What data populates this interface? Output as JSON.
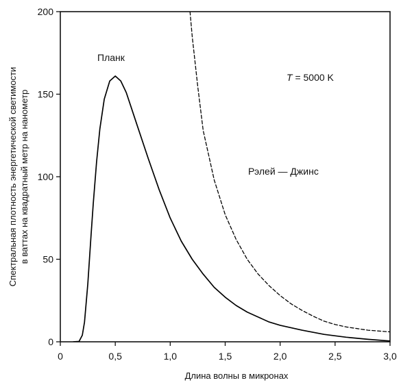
{
  "chart_data": {
    "type": "line",
    "xlabel": "Длина волны в микронах",
    "ylabel_line1": "Спектральная плотность энергетической светимости",
    "ylabel_line2": "в ваттах на квадратный метр на нанометр",
    "xlim": [
      0,
      3.0
    ],
    "ylim": [
      0,
      200
    ],
    "grid": false,
    "legend": "none",
    "x_ticks": [
      0,
      0.5,
      1.0,
      1.5,
      2.0,
      2.5,
      3.0
    ],
    "x_tick_labels": [
      "0",
      "0,5",
      "1,0",
      "1,5",
      "2,0",
      "2,5",
      "3,0"
    ],
    "y_ticks": [
      0,
      50,
      100,
      150,
      200
    ],
    "y_tick_labels": [
      "0",
      "50",
      "100",
      "150",
      "200"
    ],
    "temperature_label": {
      "symbol": "T",
      "value": " = 5000 K"
    },
    "series": [
      {
        "name": "Планк",
        "style": "solid",
        "color": "#000000",
        "x": [
          0.12,
          0.17,
          0.2,
          0.22,
          0.25,
          0.28,
          0.3,
          0.33,
          0.36,
          0.4,
          0.45,
          0.5,
          0.55,
          0.6,
          0.65,
          0.7,
          0.8,
          0.9,
          1.0,
          1.1,
          1.2,
          1.3,
          1.4,
          1.5,
          1.6,
          1.7,
          1.8,
          1.9,
          2.0,
          2.2,
          2.4,
          2.6,
          2.8,
          3.0
        ],
        "y": [
          0,
          0.2,
          4,
          12,
          35,
          65,
          84,
          109,
          129,
          147,
          158,
          161,
          158,
          151,
          141,
          131,
          111,
          92,
          75,
          61,
          50,
          41,
          33,
          27,
          22,
          18,
          15,
          12,
          10,
          7,
          4.5,
          2.8,
          1.5,
          0.5
        ]
      },
      {
        "name": "Рэлей — Джинс",
        "style": "dashed",
        "color": "#000000",
        "x": [
          1.18,
          1.2,
          1.25,
          1.3,
          1.4,
          1.5,
          1.6,
          1.7,
          1.8,
          1.9,
          2.0,
          2.1,
          2.2,
          2.3,
          2.4,
          2.5,
          2.6,
          2.7,
          2.8,
          2.9,
          3.0
        ],
        "y": [
          200,
          185,
          155,
          128,
          98,
          77,
          62,
          50,
          41,
          34,
          28,
          23,
          19,
          15.5,
          12.5,
          10.5,
          9,
          8,
          7,
          6.5,
          6
        ]
      }
    ]
  }
}
